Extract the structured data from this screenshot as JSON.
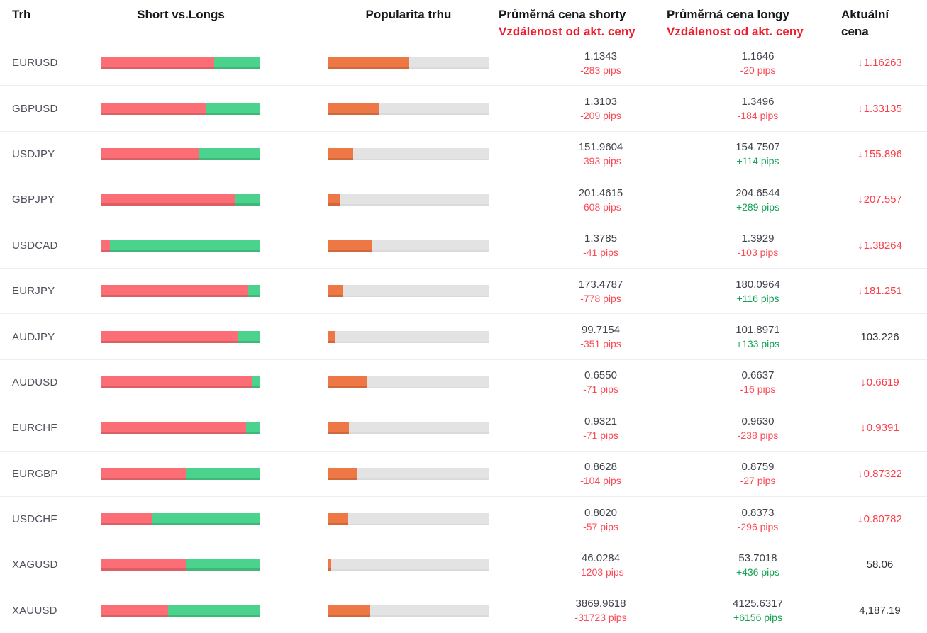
{
  "header": {
    "market": "Trh",
    "short_vs_longs": "Short vs.Longs",
    "popularity": "Popularita trhu",
    "avg_short": "Průměrná cena shorty",
    "avg_long": "Průměrná cena longy",
    "distance": "Vzdálenost od akt. ceny",
    "current_line1": "Aktuální",
    "current_line2": "cena"
  },
  "colors": {
    "short_bar": "#FC6E75",
    "long_bar": "#4BD28C",
    "popularity_bar": "#EE7845",
    "bar_track": "#E4E3E3",
    "negative_pips": "#FB4A55",
    "positive_pips": "#13A152",
    "header_red": "#EE1C2C",
    "price_down_red": "#FB3D49"
  },
  "rows": [
    {
      "pair": "EURUSD",
      "short_pct": 71,
      "popularity_pct": 50,
      "short_price": "1.1343",
      "short_dist": "-283 pips",
      "long_price": "1.1646",
      "long_dist": "-20 pips",
      "current": "1.16263",
      "current_dir": "down"
    },
    {
      "pair": "GBPUSD",
      "short_pct": 66,
      "popularity_pct": 32,
      "short_price": "1.3103",
      "short_dist": "-209 pips",
      "long_price": "1.3496",
      "long_dist": "-184 pips",
      "current": "1.33135",
      "current_dir": "down"
    },
    {
      "pair": "USDJPY",
      "short_pct": 61,
      "popularity_pct": 15,
      "short_price": "151.9604",
      "short_dist": "-393 pips",
      "long_price": "154.7507",
      "long_dist": "+114 pips",
      "current": "155.896",
      "current_dir": "down"
    },
    {
      "pair": "GBPJPY",
      "short_pct": 84,
      "popularity_pct": 7.5,
      "short_price": "201.4615",
      "short_dist": "-608 pips",
      "long_price": "204.6544",
      "long_dist": "+289 pips",
      "current": "207.557",
      "current_dir": "down"
    },
    {
      "pair": "USDCAD",
      "short_pct": 5.5,
      "popularity_pct": 27,
      "short_price": "1.3785",
      "short_dist": "-41 pips",
      "long_price": "1.3929",
      "long_dist": "-103 pips",
      "current": "1.38264",
      "current_dir": "down"
    },
    {
      "pair": "EURJPY",
      "short_pct": 92,
      "popularity_pct": 9,
      "short_price": "173.4787",
      "short_dist": "-778 pips",
      "long_price": "180.0964",
      "long_dist": "+116 pips",
      "current": "181.251",
      "current_dir": "down"
    },
    {
      "pair": "AUDJPY",
      "short_pct": 86,
      "popularity_pct": 4,
      "short_price": "99.7154",
      "short_dist": "-351 pips",
      "long_price": "101.8971",
      "long_dist": "+133 pips",
      "current": "103.226",
      "current_dir": "none"
    },
    {
      "pair": "AUDUSD",
      "short_pct": 95,
      "popularity_pct": 24,
      "short_price": "0.6550",
      "short_dist": "-71 pips",
      "long_price": "0.6637",
      "long_dist": "-16 pips",
      "current": "0.6619",
      "current_dir": "down"
    },
    {
      "pair": "EURCHF",
      "short_pct": 91,
      "popularity_pct": 13,
      "short_price": "0.9321",
      "short_dist": "-71 pips",
      "long_price": "0.9630",
      "long_dist": "-238 pips",
      "current": "0.9391",
      "current_dir": "down"
    },
    {
      "pair": "EURGBP",
      "short_pct": 53,
      "popularity_pct": 18,
      "short_price": "0.8628",
      "short_dist": "-104 pips",
      "long_price": "0.8759",
      "long_dist": "-27 pips",
      "current": "0.87322",
      "current_dir": "down"
    },
    {
      "pair": "USDCHF",
      "short_pct": 32,
      "popularity_pct": 12,
      "short_price": "0.8020",
      "short_dist": "-57 pips",
      "long_price": "0.8373",
      "long_dist": "-296 pips",
      "current": "0.80782",
      "current_dir": "down"
    },
    {
      "pair": "XAGUSD",
      "short_pct": 53,
      "popularity_pct": 1.5,
      "short_price": "46.0284",
      "short_dist": "-1203 pips",
      "long_price": "53.7018",
      "long_dist": "+436 pips",
      "current": "58.06",
      "current_dir": "none"
    },
    {
      "pair": "XAUUSD",
      "short_pct": 42,
      "popularity_pct": 26,
      "short_price": "3869.9618",
      "short_dist": "-31723 pips",
      "long_price": "4125.6317",
      "long_dist": "+6156 pips",
      "current": "4,187.19",
      "current_dir": "none"
    }
  ]
}
